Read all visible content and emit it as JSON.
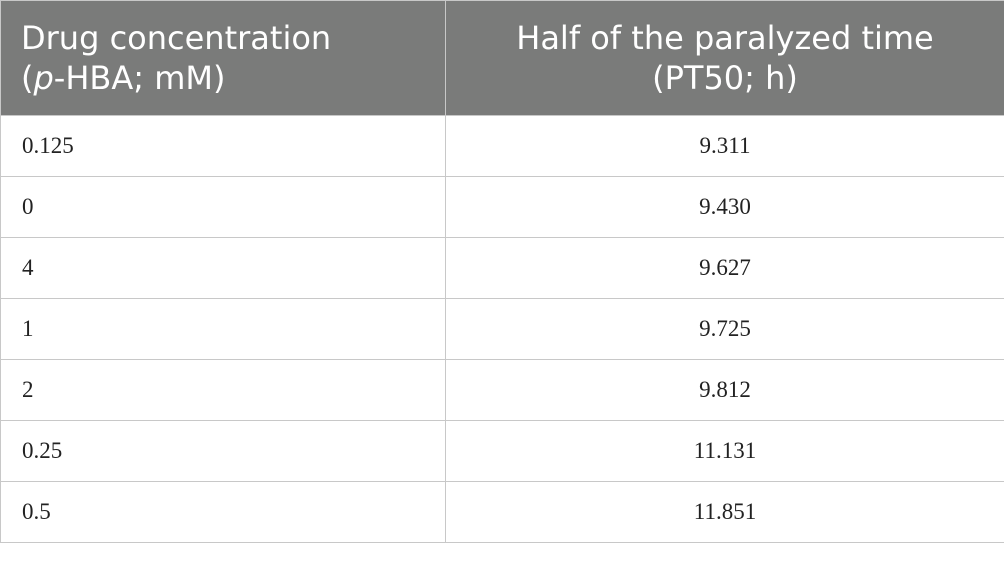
{
  "table": {
    "header": {
      "col1_line1": "Drug concentration",
      "col1_line2_open": "(",
      "col1_line2_italic": "p",
      "col1_line2_rest": "-HBA; mM)",
      "col2_line1": "Half of the paralyzed time",
      "col2_line2": "(PT50; h)"
    },
    "rows": [
      {
        "concentration": "0.125",
        "pt50": "9.311"
      },
      {
        "concentration": "0",
        "pt50": "9.430"
      },
      {
        "concentration": "4",
        "pt50": "9.627"
      },
      {
        "concentration": "1",
        "pt50": "9.725"
      },
      {
        "concentration": "2",
        "pt50": "9.812"
      },
      {
        "concentration": "0.25",
        "pt50": "11.131"
      },
      {
        "concentration": "0.5",
        "pt50": "11.851"
      }
    ]
  }
}
